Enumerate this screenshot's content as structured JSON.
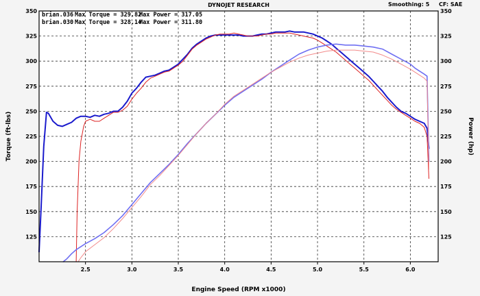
{
  "header": {
    "title": "DYNOJET RESEARCH",
    "smoothing": "Smoothing: 5",
    "correction": "CF: SAE"
  },
  "legend": [
    {
      "run": "brian.036",
      "max_torque_label": "Max Torque = 329.82",
      "max_power_label": "Max Power = 317.05",
      "color": "#1a1acc"
    },
    {
      "run": "brian.030",
      "max_torque_label": "Max Torque = 328.14",
      "max_power_label": "Max Power = 311.80",
      "color": "#dd2222"
    }
  ],
  "chart_data": {
    "type": "line",
    "xlabel": "Engine Speed (RPM x1000)",
    "ylabel_left": "Torque (ft-lbs)",
    "ylabel_right": "Power (hp)",
    "xlim": [
      2.0,
      6.3
    ],
    "ylim": [
      100,
      350
    ],
    "x_ticks": [
      "2.5",
      "3.0",
      "3.5",
      "4.0",
      "4.5",
      "5.0",
      "5.5",
      "6.0"
    ],
    "y_ticks": [
      "125",
      "150",
      "175",
      "200",
      "225",
      "250",
      "275",
      "300",
      "325",
      "350"
    ],
    "grid": true,
    "series": [
      {
        "name": "brian.036 Torque",
        "color": "#1a1acc",
        "width": 2,
        "points": [
          [
            2.0,
            110
          ],
          [
            2.02,
            150
          ],
          [
            2.05,
            215
          ],
          [
            2.08,
            249
          ],
          [
            2.1,
            248
          ],
          [
            2.15,
            240
          ],
          [
            2.2,
            236
          ],
          [
            2.25,
            235
          ],
          [
            2.3,
            237
          ],
          [
            2.35,
            239
          ],
          [
            2.4,
            243
          ],
          [
            2.45,
            245
          ],
          [
            2.5,
            245
          ],
          [
            2.55,
            244
          ],
          [
            2.6,
            246
          ],
          [
            2.65,
            245
          ],
          [
            2.7,
            247
          ],
          [
            2.75,
            248
          ],
          [
            2.8,
            250
          ],
          [
            2.85,
            250
          ],
          [
            2.9,
            254
          ],
          [
            2.95,
            260
          ],
          [
            3.0,
            268
          ],
          [
            3.05,
            273
          ],
          [
            3.1,
            279
          ],
          [
            3.15,
            284
          ],
          [
            3.2,
            285
          ],
          [
            3.25,
            286
          ],
          [
            3.3,
            288
          ],
          [
            3.35,
            290
          ],
          [
            3.4,
            291
          ],
          [
            3.45,
            294
          ],
          [
            3.5,
            297
          ],
          [
            3.55,
            302
          ],
          [
            3.6,
            307
          ],
          [
            3.65,
            313
          ],
          [
            3.7,
            317
          ],
          [
            3.75,
            320
          ],
          [
            3.8,
            323
          ],
          [
            3.85,
            325
          ],
          [
            3.9,
            326
          ],
          [
            3.95,
            326
          ],
          [
            4.0,
            326
          ],
          [
            4.05,
            326
          ],
          [
            4.1,
            326
          ],
          [
            4.15,
            326
          ],
          [
            4.2,
            325
          ],
          [
            4.25,
            325
          ],
          [
            4.3,
            325
          ],
          [
            4.35,
            326
          ],
          [
            4.4,
            327
          ],
          [
            4.45,
            327
          ],
          [
            4.5,
            328
          ],
          [
            4.55,
            329
          ],
          [
            4.6,
            329
          ],
          [
            4.65,
            329
          ],
          [
            4.7,
            330
          ],
          [
            4.75,
            329
          ],
          [
            4.8,
            329
          ],
          [
            4.85,
            329
          ],
          [
            4.9,
            328
          ],
          [
            4.95,
            327
          ],
          [
            5.0,
            325
          ],
          [
            5.05,
            323
          ],
          [
            5.1,
            320
          ],
          [
            5.15,
            317
          ],
          [
            5.2,
            313
          ],
          [
            5.25,
            309
          ],
          [
            5.3,
            305
          ],
          [
            5.35,
            301
          ],
          [
            5.4,
            297
          ],
          [
            5.45,
            293
          ],
          [
            5.5,
            289
          ],
          [
            5.55,
            285
          ],
          [
            5.6,
            280
          ],
          [
            5.65,
            275
          ],
          [
            5.7,
            270
          ],
          [
            5.75,
            264
          ],
          [
            5.8,
            259
          ],
          [
            5.85,
            254
          ],
          [
            5.9,
            250
          ],
          [
            5.95,
            248
          ],
          [
            6.0,
            245
          ],
          [
            6.05,
            242
          ],
          [
            6.1,
            240
          ],
          [
            6.15,
            238
          ],
          [
            6.18,
            233
          ],
          [
            6.2,
            213
          ]
        ]
      },
      {
        "name": "brian.030 Torque",
        "color": "#dd2222",
        "width": 1,
        "points": [
          [
            2.4,
            100
          ],
          [
            2.41,
            150
          ],
          [
            2.43,
            200
          ],
          [
            2.45,
            220
          ],
          [
            2.48,
            235
          ],
          [
            2.5,
            240
          ],
          [
            2.55,
            242
          ],
          [
            2.6,
            240
          ],
          [
            2.65,
            240
          ],
          [
            2.7,
            243
          ],
          [
            2.75,
            246
          ],
          [
            2.8,
            249
          ],
          [
            2.85,
            249
          ],
          [
            2.9,
            251
          ],
          [
            2.95,
            255
          ],
          [
            3.0,
            262
          ],
          [
            3.05,
            268
          ],
          [
            3.1,
            273
          ],
          [
            3.15,
            279
          ],
          [
            3.2,
            283
          ],
          [
            3.25,
            285
          ],
          [
            3.3,
            287
          ],
          [
            3.35,
            289
          ],
          [
            3.4,
            290
          ],
          [
            3.45,
            293
          ],
          [
            3.5,
            296
          ],
          [
            3.55,
            300
          ],
          [
            3.6,
            306
          ],
          [
            3.65,
            312
          ],
          [
            3.7,
            316
          ],
          [
            3.75,
            319
          ],
          [
            3.8,
            322
          ],
          [
            3.85,
            324
          ],
          [
            3.9,
            326
          ],
          [
            3.95,
            327
          ],
          [
            4.0,
            327
          ],
          [
            4.05,
            327
          ],
          [
            4.1,
            328
          ],
          [
            4.15,
            327
          ],
          [
            4.2,
            326
          ],
          [
            4.25,
            325
          ],
          [
            4.3,
            325
          ],
          [
            4.35,
            325
          ],
          [
            4.4,
            326
          ],
          [
            4.45,
            327
          ],
          [
            4.5,
            327
          ],
          [
            4.55,
            328
          ],
          [
            4.6,
            328
          ],
          [
            4.65,
            328
          ],
          [
            4.7,
            328
          ],
          [
            4.75,
            327
          ],
          [
            4.8,
            326
          ],
          [
            4.85,
            325
          ],
          [
            4.9,
            324
          ],
          [
            4.95,
            323
          ],
          [
            5.0,
            321
          ],
          [
            5.05,
            318
          ],
          [
            5.1,
            315
          ],
          [
            5.15,
            312
          ],
          [
            5.2,
            309
          ],
          [
            5.25,
            305
          ],
          [
            5.3,
            301
          ],
          [
            5.35,
            297
          ],
          [
            5.4,
            293
          ],
          [
            5.45,
            289
          ],
          [
            5.5,
            285
          ],
          [
            5.55,
            281
          ],
          [
            5.6,
            276
          ],
          [
            5.65,
            271
          ],
          [
            5.7,
            266
          ],
          [
            5.75,
            261
          ],
          [
            5.8,
            256
          ],
          [
            5.85,
            252
          ],
          [
            5.9,
            249
          ],
          [
            5.95,
            246
          ],
          [
            6.0,
            243
          ],
          [
            6.05,
            240
          ],
          [
            6.1,
            238
          ],
          [
            6.15,
            234
          ],
          [
            6.18,
            225
          ],
          [
            6.2,
            183
          ]
        ]
      },
      {
        "name": "brian.036 Power",
        "color": "#6f6ff2",
        "width": 1.6,
        "points": [
          [
            2.26,
            100
          ],
          [
            2.3,
            103
          ],
          [
            2.35,
            108
          ],
          [
            2.4,
            112
          ],
          [
            2.5,
            118
          ],
          [
            2.6,
            123
          ],
          [
            2.7,
            129
          ],
          [
            2.8,
            137
          ],
          [
            2.9,
            146
          ],
          [
            3.0,
            157
          ],
          [
            3.1,
            168
          ],
          [
            3.2,
            179
          ],
          [
            3.3,
            188
          ],
          [
            3.4,
            197
          ],
          [
            3.5,
            207
          ],
          [
            3.6,
            218
          ],
          [
            3.7,
            228
          ],
          [
            3.8,
            238
          ],
          [
            3.9,
            247
          ],
          [
            4.0,
            256
          ],
          [
            4.1,
            264
          ],
          [
            4.2,
            270
          ],
          [
            4.3,
            276
          ],
          [
            4.4,
            282
          ],
          [
            4.5,
            289
          ],
          [
            4.6,
            295
          ],
          [
            4.7,
            301
          ],
          [
            4.8,
            307
          ],
          [
            4.9,
            311
          ],
          [
            5.0,
            314
          ],
          [
            5.1,
            316
          ],
          [
            5.2,
            317
          ],
          [
            5.3,
            316
          ],
          [
            5.4,
            316
          ],
          [
            5.5,
            315
          ],
          [
            5.6,
            314
          ],
          [
            5.7,
            312
          ],
          [
            5.8,
            307
          ],
          [
            5.9,
            302
          ],
          [
            6.0,
            297
          ],
          [
            6.05,
            293
          ],
          [
            6.1,
            290
          ],
          [
            6.15,
            287
          ],
          [
            6.18,
            285
          ],
          [
            6.2,
            200
          ]
        ]
      },
      {
        "name": "brian.030 Power",
        "color": "#f28a8a",
        "width": 1,
        "points": [
          [
            2.42,
            100
          ],
          [
            2.45,
            104
          ],
          [
            2.5,
            110
          ],
          [
            2.6,
            117
          ],
          [
            2.7,
            124
          ],
          [
            2.8,
            133
          ],
          [
            2.9,
            143
          ],
          [
            3.0,
            154
          ],
          [
            3.1,
            165
          ],
          [
            3.2,
            177
          ],
          [
            3.3,
            186
          ],
          [
            3.4,
            196
          ],
          [
            3.5,
            206
          ],
          [
            3.6,
            217
          ],
          [
            3.7,
            228
          ],
          [
            3.8,
            238
          ],
          [
            3.9,
            247
          ],
          [
            4.0,
            257
          ],
          [
            4.1,
            265
          ],
          [
            4.2,
            271
          ],
          [
            4.3,
            277
          ],
          [
            4.4,
            283
          ],
          [
            4.5,
            289
          ],
          [
            4.6,
            294
          ],
          [
            4.7,
            299
          ],
          [
            4.8,
            303
          ],
          [
            4.9,
            306
          ],
          [
            5.0,
            308
          ],
          [
            5.1,
            310
          ],
          [
            5.2,
            311
          ],
          [
            5.3,
            311
          ],
          [
            5.4,
            311
          ],
          [
            5.5,
            310
          ],
          [
            5.6,
            309
          ],
          [
            5.7,
            306
          ],
          [
            5.8,
            302
          ],
          [
            5.9,
            297
          ],
          [
            6.0,
            292
          ],
          [
            6.05,
            289
          ],
          [
            6.1,
            286
          ],
          [
            6.15,
            283
          ],
          [
            6.18,
            280
          ],
          [
            6.2,
            192
          ]
        ]
      }
    ]
  }
}
